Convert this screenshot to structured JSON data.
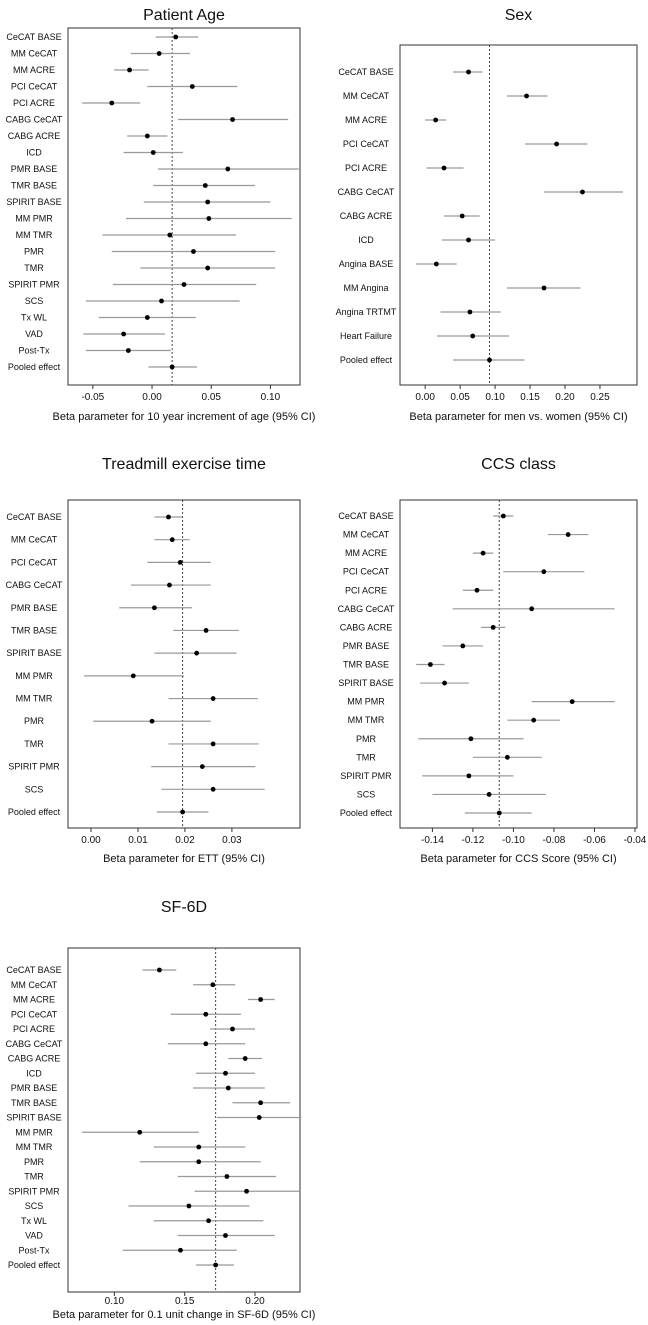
{
  "chart_data": [
    {
      "type": "forest",
      "title": "Patient Age",
      "xlabel": "Beta parameter for 10 year increment of age (95% CI)",
      "categories": [
        "CeCAT BASE",
        "MM CeCAT",
        "MM ACRE",
        "PCI CeCAT",
        "PCI ACRE",
        "CABG CeCAT",
        "CABG ACRE",
        "ICD",
        "PMR BASE",
        "TMR BASE",
        "SPIRIT BASE",
        "MM PMR",
        "MM TMR",
        "PMR",
        "TMR",
        "SPIRIT PMR",
        "SCS",
        "Tx WL",
        "VAD",
        "Post-Tx",
        "Pooled effect"
      ],
      "values": [
        0.02,
        0.006,
        -0.019,
        0.034,
        -0.034,
        0.068,
        -0.004,
        0.001,
        0.064,
        0.045,
        0.047,
        0.048,
        0.015,
        0.035,
        0.047,
        0.027,
        0.008,
        -0.004,
        -0.024,
        -0.02,
        0.017
      ],
      "lower": [
        0.003,
        -0.018,
        -0.032,
        -0.004,
        -0.059,
        0.022,
        -0.021,
        -0.024,
        0.005,
        0.001,
        -0.007,
        -0.022,
        -0.042,
        -0.034,
        -0.01,
        -0.033,
        -0.056,
        -0.045,
        -0.058,
        -0.056,
        -0.003
      ],
      "upper": [
        0.039,
        0.032,
        -0.003,
        0.072,
        -0.01,
        0.115,
        0.013,
        0.026,
        0.124,
        0.087,
        0.1,
        0.118,
        0.071,
        0.104,
        0.104,
        0.088,
        0.074,
        0.037,
        0.011,
        0.016,
        0.038
      ],
      "xlim": [
        -0.071,
        0.125
      ],
      "xticks": [
        -0.05,
        {
          "value": 0,
          "label": "0.00"
        },
        0.05,
        {
          "value": 0.1,
          "label": "0.10"
        }
      ]
    },
    {
      "type": "forest",
      "title": "Sex",
      "xlabel": "Beta parameter for men vs. women (95% CI)",
      "categories": [
        "CeCAT BASE",
        "MM CeCAT",
        "MM ACRE",
        "PCI CeCAT",
        "PCI ACRE",
        "CABG CeCAT",
        "CABG ACRE",
        "ICD",
        "Angina BASE",
        "MM Angina",
        "Angina TRTMT",
        "Heart Failure",
        "Pooled effect"
      ],
      "values": [
        0.062,
        0.145,
        0.015,
        0.188,
        0.027,
        0.225,
        0.053,
        0.062,
        0.016,
        0.17,
        0.064,
        0.068,
        0.092
      ],
      "lower": [
        0.04,
        0.117,
        0.0,
        0.143,
        0.002,
        0.17,
        0.027,
        0.024,
        -0.013,
        0.117,
        0.022,
        0.017,
        0.04
      ],
      "upper": [
        0.082,
        0.175,
        0.03,
        0.232,
        0.055,
        0.283,
        0.078,
        0.1,
        0.045,
        0.222,
        0.108,
        0.12,
        0.142
      ],
      "xlim": [
        -0.036,
        0.303
      ],
      "xticks": [
        {
          "value": 0,
          "label": "0.00"
        },
        0.05,
        {
          "value": 0.1,
          "label": "0.10"
        },
        0.15,
        {
          "value": 0.2,
          "label": "0.20"
        },
        0.25
      ]
    },
    {
      "type": "forest",
      "title": "Treadmill exercise time",
      "xlabel": "Beta parameter for ETT (95% CI)",
      "categories": [
        "CeCAT BASE",
        "MM CeCAT",
        "PCI CeCAT",
        "CABG CeCAT",
        "PMR BASE",
        "TMR BASE",
        "SPIRIT BASE",
        "MM PMR",
        "MM TMR",
        "PMR",
        "TMR",
        "SPIRIT PMR",
        "SCS",
        "Pooled effect"
      ],
      "values": [
        0.0165,
        0.0173,
        0.019,
        0.0167,
        0.0135,
        0.0245,
        0.0225,
        0.009,
        0.026,
        0.013,
        0.026,
        0.0237,
        0.026,
        0.0195
      ],
      "lower": [
        0.0135,
        0.0135,
        0.012,
        0.0085,
        0.006,
        0.0175,
        0.0135,
        -0.0015,
        0.0165,
        0.0005,
        0.0165,
        0.0128,
        0.015,
        0.014
      ],
      "upper": [
        0.0195,
        0.021,
        0.0255,
        0.0255,
        0.0215,
        0.0315,
        0.031,
        0.0198,
        0.0355,
        0.0255,
        0.0357,
        0.035,
        0.037,
        0.025
      ],
      "xlim": [
        -0.0049,
        0.0445
      ],
      "xticks": [
        {
          "value": 0,
          "label": "0.00"
        },
        0.01,
        0.02,
        0.03
      ]
    },
    {
      "type": "forest",
      "title": "CCS class",
      "xlabel": "Beta parameter for CCS Score (95% CI)",
      "categories": [
        "CeCAT BASE",
        "MM CeCAT",
        "MM ACRE",
        "PCI CeCAT",
        "PCI ACRE",
        "CABG CeCAT",
        "CABG ACRE",
        "PMR BASE",
        "TMR BASE",
        "SPIRIT BASE",
        "MM PMR",
        "MM TMR",
        "PMR",
        "TMR",
        "SPIRIT PMR",
        "SCS",
        "Pooled effect"
      ],
      "values": [
        -0.105,
        -0.073,
        -0.115,
        -0.085,
        -0.118,
        -0.091,
        -0.11,
        -0.125,
        -0.141,
        -0.134,
        -0.071,
        -0.09,
        -0.121,
        -0.103,
        -0.122,
        -0.112,
        -0.107
      ],
      "lower": [
        -0.11,
        -0.083,
        -0.12,
        -0.105,
        -0.125,
        -0.13,
        -0.116,
        -0.135,
        -0.148,
        -0.146,
        -0.091,
        -0.103,
        -0.147,
        -0.12,
        -0.145,
        -0.14,
        -0.124
      ],
      "upper": [
        -0.1,
        -0.063,
        -0.11,
        -0.065,
        -0.11,
        -0.05,
        -0.104,
        -0.115,
        -0.134,
        -0.122,
        -0.05,
        -0.077,
        -0.095,
        -0.086,
        -0.1,
        -0.084,
        -0.091
      ],
      "xlim": [
        -0.156,
        -0.039
      ],
      "xticks": [
        -0.14,
        -0.12,
        {
          "value": -0.1,
          "label": "-0.10"
        },
        -0.08,
        -0.06,
        -0.04
      ]
    },
    {
      "type": "forest",
      "title": "SF-6D",
      "xlabel": "Beta parameter for 0.1 unit change in SF-6D (95% CI)",
      "categories": [
        "CeCAT BASE",
        "MM CeCAT",
        "MM ACRE",
        "PCI CeCAT",
        "PCI ACRE",
        "CABG CeCAT",
        "CABG ACRE",
        "ICD",
        "PMR BASE",
        "TMR BASE",
        "SPIRIT BASE",
        "MM PMR",
        "MM TMR",
        "PMR",
        "TMR",
        "SPIRIT PMR",
        "SCS",
        "Tx WL",
        "VAD",
        "Post-Tx",
        "Pooled effect"
      ],
      "values": [
        0.132,
        0.17,
        0.204,
        0.165,
        0.184,
        0.165,
        0.193,
        0.179,
        0.181,
        0.204,
        0.203,
        0.118,
        0.16,
        0.16,
        0.18,
        0.194,
        0.153,
        0.167,
        0.179,
        0.147,
        0.172
      ],
      "lower": [
        0.12,
        0.156,
        0.195,
        0.14,
        0.168,
        0.138,
        0.181,
        0.158,
        0.156,
        0.184,
        0.173,
        0.077,
        0.128,
        0.118,
        0.145,
        0.157,
        0.11,
        0.128,
        0.145,
        0.106,
        0.158
      ],
      "upper": [
        0.144,
        0.186,
        0.214,
        0.19,
        0.2,
        0.193,
        0.205,
        0.2,
        0.207,
        0.225,
        0.233,
        0.16,
        0.193,
        0.204,
        0.215,
        0.232,
        0.196,
        0.206,
        0.214,
        0.187,
        0.185
      ],
      "xlim": [
        0.067,
        0.232
      ],
      "xticks": [
        {
          "value": 0.1,
          "label": "0.10"
        },
        0.15,
        {
          "value": 0.2,
          "label": "0.20"
        }
      ]
    }
  ]
}
